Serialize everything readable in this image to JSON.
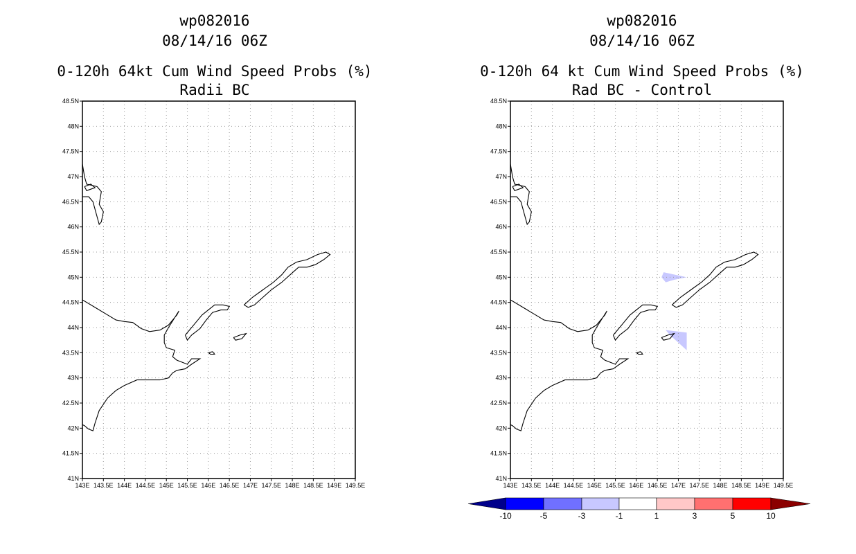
{
  "chart_data": [
    {
      "type": "map",
      "title_lines": [
        "wp082016",
        "08/14/16 06Z",
        "0-120h 64kt Cum Wind Speed Probs (%)",
        "Radii BC"
      ],
      "xlim": [
        143,
        149.5
      ],
      "ylim": [
        41,
        48.5
      ],
      "x_ticks": [
        "143E",
        "143.5E",
        "144E",
        "144.5E",
        "145E",
        "145.5E",
        "146E",
        "146.5E",
        "147E",
        "147.5E",
        "148E",
        "148.5E",
        "149E",
        "149.5E"
      ],
      "y_ticks": [
        "41N",
        "41.5N",
        "42N",
        "42.5N",
        "43N",
        "43.5N",
        "44N",
        "44.5N",
        "45N",
        "45.5N",
        "46N",
        "46.5N",
        "47N",
        "47.5N",
        "48N",
        "48.5N"
      ],
      "grid": true,
      "shaded_regions": []
    },
    {
      "type": "map",
      "title_lines": [
        "wp082016",
        "08/14/16 06Z",
        "0-120h 64 kt Cum Wind Speed Probs (%)",
        "Rad BC - Control"
      ],
      "xlim": [
        143,
        149.5
      ],
      "ylim": [
        41,
        48.5
      ],
      "x_ticks": [
        "143E",
        "143.5E",
        "144E",
        "144.5E",
        "145E",
        "145.5E",
        "146E",
        "146.5E",
        "147E",
        "147.5E",
        "148E",
        "148.5E",
        "149E",
        "149.5E"
      ],
      "y_ticks": [
        "41N",
        "41.5N",
        "42N",
        "42.5N",
        "43N",
        "43.5N",
        "44N",
        "44.5N",
        "45N",
        "45.5N",
        "46N",
        "46.5N",
        "47N",
        "47.5N",
        "48N",
        "48.5N"
      ],
      "grid": true,
      "shaded_regions": [
        {
          "category": "-3 to -1",
          "points": [
            [
              146.7,
              44.9
            ],
            [
              146.6,
              45.0
            ],
            [
              146.65,
              45.1
            ],
            [
              147.2,
              45.0
            ],
            [
              146.9,
              44.95
            ]
          ]
        },
        {
          "category": "-3 to -1",
          "points": [
            [
              146.7,
              43.95
            ],
            [
              147.2,
              43.9
            ],
            [
              147.2,
              43.55
            ],
            [
              147.0,
              43.7
            ],
            [
              146.8,
              43.85
            ]
          ]
        }
      ],
      "colorbar": {
        "labels": [
          "-10",
          "-5",
          "-3",
          "-1",
          "1",
          "3",
          "5",
          "10"
        ],
        "colors": [
          "#00008b",
          "#0000ff",
          "#7070ff",
          "#c8c8ff",
          "#ffffff",
          "#ffc8c8",
          "#ff7070",
          "#ff0000",
          "#8b0000"
        ]
      }
    }
  ]
}
